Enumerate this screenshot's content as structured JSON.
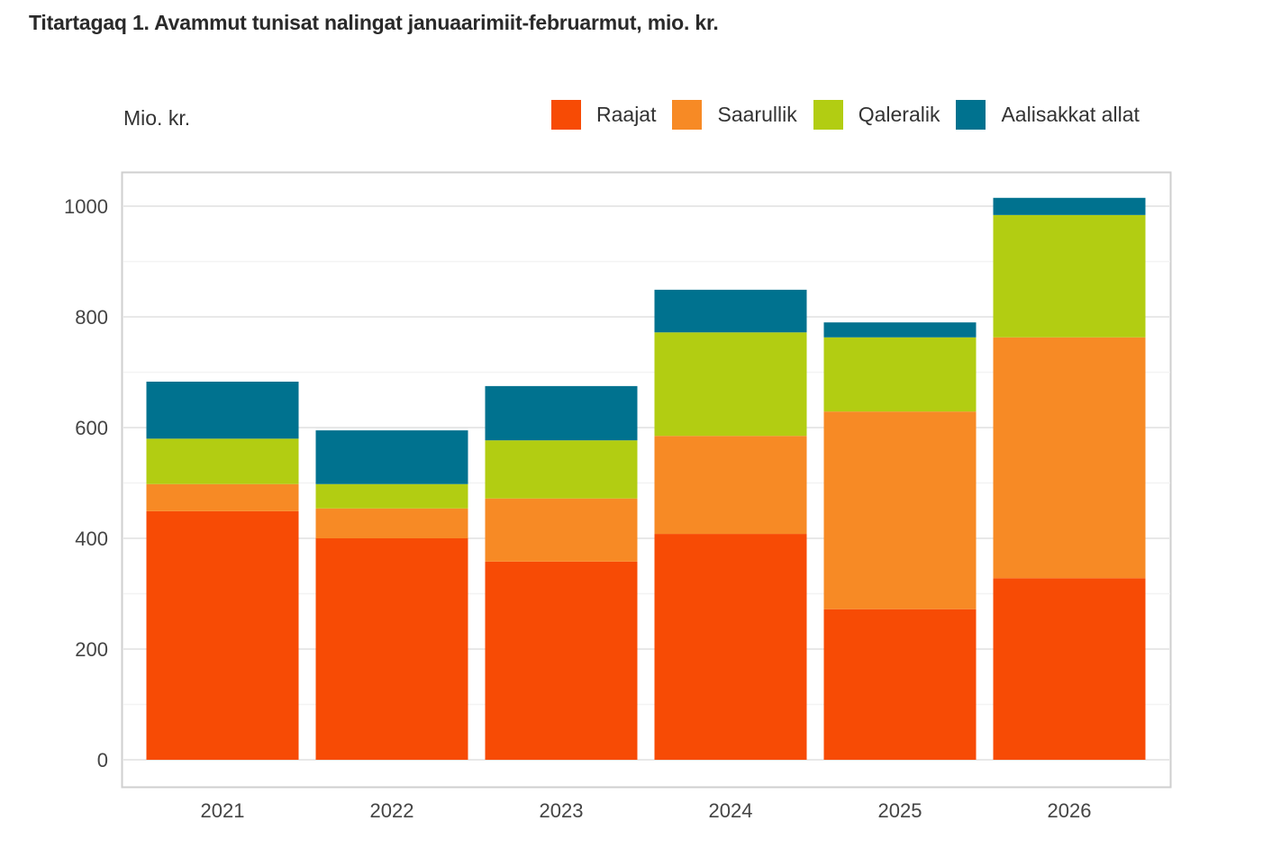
{
  "title": "Titartagaq 1. Avammut tunisat nalingat januaarimiit-februarmut, mio. kr.",
  "chart_data": {
    "type": "bar",
    "stacked": true,
    "title": "Titartagaq 1. Avammut tunisat nalingat januaarimiit-februarmut, mio. kr.",
    "xlabel": "",
    "ylabel": "Mio. kr.",
    "ylim": [
      0,
      1000
    ],
    "yticks": [
      "0",
      "200",
      "400",
      "600",
      "800",
      "1000"
    ],
    "grid": true,
    "legend_position": "top-right",
    "categories": [
      "2021",
      "2022",
      "2023",
      "2024",
      "2025",
      "2026"
    ],
    "series": [
      {
        "name": "Raajat",
        "color": "#f74b05",
        "values": [
          449,
          400,
          358,
          408,
          272,
          328
        ]
      },
      {
        "name": "Saarullik",
        "color": "#f78a25",
        "values": [
          49,
          54,
          114,
          177,
          357,
          435
        ]
      },
      {
        "name": "Qaleralik",
        "color": "#b2cd12",
        "values": [
          82,
          44,
          105,
          187,
          134,
          221
        ]
      },
      {
        "name": "Aalisakkat allat",
        "color": "#00728f",
        "values": [
          103,
          97,
          98,
          77,
          27,
          31
        ]
      }
    ]
  }
}
